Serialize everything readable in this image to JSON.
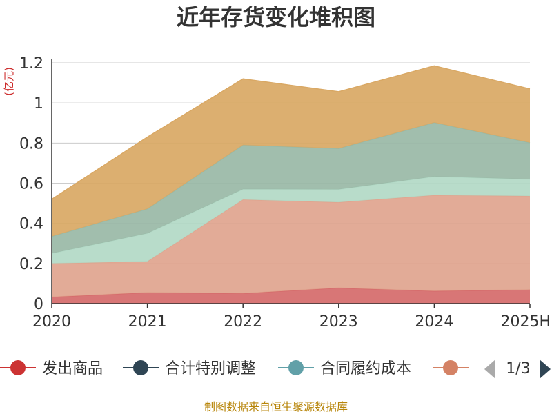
{
  "chart_data": {
    "type": "area",
    "stacked": true,
    "title": "近年存货变化堆积图",
    "unit_label": "(亿元)",
    "categories": [
      "2020",
      "2021",
      "2022",
      "2023",
      "2024",
      "2025H"
    ],
    "ylim": [
      0,
      1.2
    ],
    "y_ticks": [
      "0",
      "0.2",
      "0.4",
      "0.6",
      "0.8",
      "1",
      "1.2"
    ],
    "grid": true,
    "series": [
      {
        "name": "发出商品",
        "color": "#d56a6a",
        "values": [
          0.033,
          0.055,
          0.051,
          0.078,
          0.063,
          0.069
        ]
      },
      {
        "name": "",
        "color": "#e0a48e",
        "values": [
          0.167,
          0.155,
          0.467,
          0.427,
          0.477,
          0.467
        ]
      },
      {
        "name": "",
        "color": "#b2d9c6",
        "values": [
          0.05,
          0.14,
          0.052,
          0.064,
          0.093,
          0.084
        ]
      },
      {
        "name": "",
        "color": "#99b9a6",
        "values": [
          0.085,
          0.122,
          0.22,
          0.204,
          0.269,
          0.182
        ]
      },
      {
        "name": "",
        "color": "#d9a864",
        "values": [
          0.185,
          0.358,
          0.33,
          0.283,
          0.283,
          0.268
        ]
      }
    ],
    "legend": {
      "position": "bottom",
      "items": [
        {
          "name": "发出商品",
          "color": "#cc3333"
        },
        {
          "name": "合计特别调整",
          "color": "#2f4554"
        },
        {
          "name": "合同履约成本",
          "color": "#61a0a8"
        },
        {
          "name": "",
          "color": "#d48265"
        }
      ],
      "page": "1/3"
    },
    "source": "制图数据来自恒生聚源数据库"
  }
}
